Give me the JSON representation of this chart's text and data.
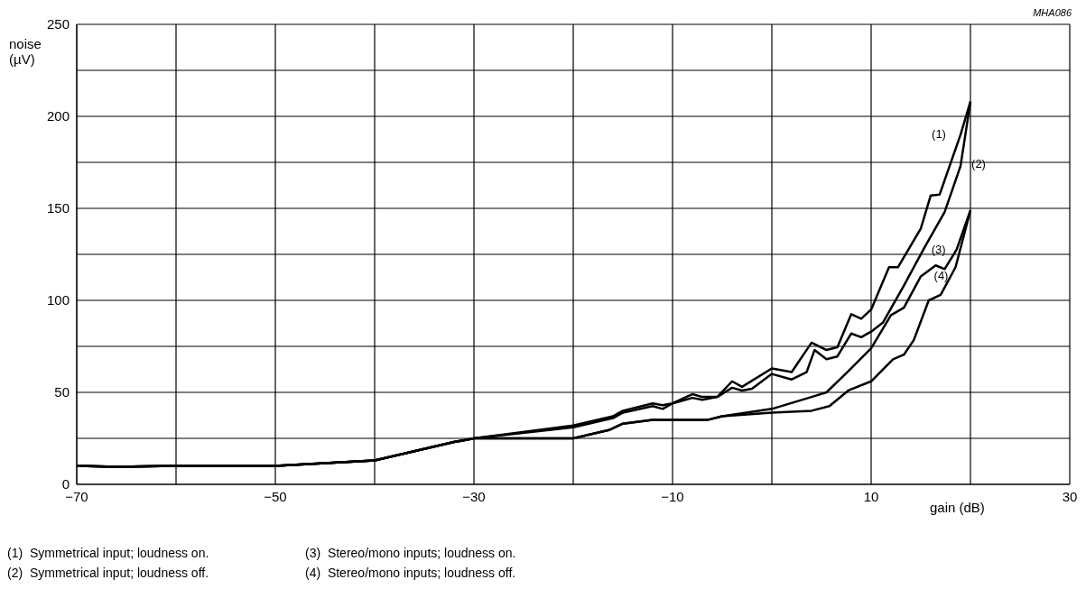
{
  "chart_data": {
    "type": "line",
    "xlabel": "gain (dB)",
    "ylabel": "noise (µV)",
    "xlim": [
      -70,
      30
    ],
    "ylim": [
      0,
      250
    ],
    "xticks": [
      {
        "value": -70,
        "label": "−70"
      },
      {
        "value": -60,
        "label": null
      },
      {
        "value": -50,
        "label": "−50"
      },
      {
        "value": -40,
        "label": null
      },
      {
        "value": -30,
        "label": "−30"
      },
      {
        "value": -20,
        "label": null
      },
      {
        "value": -10,
        "label": "−10"
      },
      {
        "value": 0,
        "label": null
      },
      10,
      {
        "value": 20,
        "label": null
      },
      30
    ],
    "yticks": [
      0,
      {
        "value": 25,
        "label": null
      },
      50,
      {
        "value": 75,
        "label": null
      },
      100,
      {
        "value": 125,
        "label": null
      },
      150,
      {
        "value": 175,
        "label": null
      },
      200,
      {
        "value": 225,
        "label": null
      },
      250
    ],
    "grid": true,
    "marker": "none",
    "line_style": "solid",
    "series": [
      {
        "name": "(1)",
        "color": "#000000",
        "x": [
          -70,
          -66,
          -60,
          -50,
          -40,
          -32,
          -30,
          -20,
          -16,
          -15,
          -12,
          -11,
          -10,
          -8,
          -7,
          -5.5,
          -4,
          -3,
          0,
          2,
          4,
          5.5,
          6.6,
          8,
          9,
          10,
          11.8,
          12.7,
          15,
          16,
          16.9,
          19,
          20
        ],
        "values": [
          10,
          9.5,
          10,
          10,
          13,
          23,
          25,
          32,
          37,
          40,
          44,
          43,
          44,
          49,
          47.5,
          47.5,
          56,
          53,
          63,
          61,
          77,
          73,
          74.5,
          92.5,
          90,
          95,
          118,
          118,
          139,
          157,
          157.5,
          190,
          208
        ]
      },
      {
        "name": "(2)",
        "color": "#000000",
        "x": [
          -70,
          -66,
          -60,
          -50,
          -40,
          -32,
          -30,
          -20,
          -16,
          -15,
          -12,
          -11,
          -10,
          -8,
          -7,
          -5.5,
          -4,
          -3,
          -2,
          0,
          2,
          3.5,
          4.3,
          5.5,
          6.6,
          8,
          9,
          10,
          11.2,
          13.3,
          15.4,
          17.4,
          19,
          20
        ],
        "values": [
          10,
          9.5,
          10,
          10,
          13,
          23,
          25,
          31,
          36,
          39,
          42.5,
          41,
          44,
          47,
          46,
          47.5,
          52.5,
          51,
          52,
          60,
          57,
          61,
          73,
          68,
          69.5,
          82,
          80,
          83,
          88,
          108,
          129,
          148,
          173,
          208
        ]
      },
      {
        "name": "(3)",
        "color": "#000000",
        "x": [
          -70,
          -66,
          -60,
          -50,
          -40,
          -32,
          -30,
          -20,
          -16.4,
          -15,
          -12,
          -10,
          -6.5,
          -5,
          0,
          4,
          5.5,
          7.6,
          10,
          12,
          13.3,
          15,
          16.5,
          17.4,
          18.6,
          20
        ],
        "values": [
          10,
          9.5,
          10,
          10,
          13,
          23,
          25,
          25,
          29.5,
          33,
          35,
          35,
          35,
          37,
          41,
          47.5,
          50,
          61,
          74,
          92,
          96,
          113,
          119,
          117,
          127.5,
          149
        ]
      },
      {
        "name": "(4)",
        "color": "#000000",
        "x": [
          -70,
          -66,
          -60,
          -50,
          -40,
          -32,
          -30,
          -20,
          -16.4,
          -15,
          -12,
          -10,
          -6.5,
          -5,
          0,
          4,
          5.8,
          7.7,
          10,
          12.2,
          13.3,
          14.3,
          15.8,
          17,
          18.5,
          20
        ],
        "values": [
          10,
          9.5,
          10,
          10,
          13,
          23,
          25,
          25,
          29.5,
          33,
          35,
          35,
          35,
          37,
          39,
          40,
          42.5,
          51,
          56,
          68,
          70.5,
          78.5,
          100,
          103,
          118,
          149
        ]
      }
    ],
    "annotations": [
      "MHA086",
      "(1)  Symmetrical input; loudness on.",
      "(2)  Symmetrical input; loudness off.",
      "(3)  Stereo/mono inputs; loudness on.",
      "(4)  Stereo/mono inputs; loudness off."
    ]
  }
}
